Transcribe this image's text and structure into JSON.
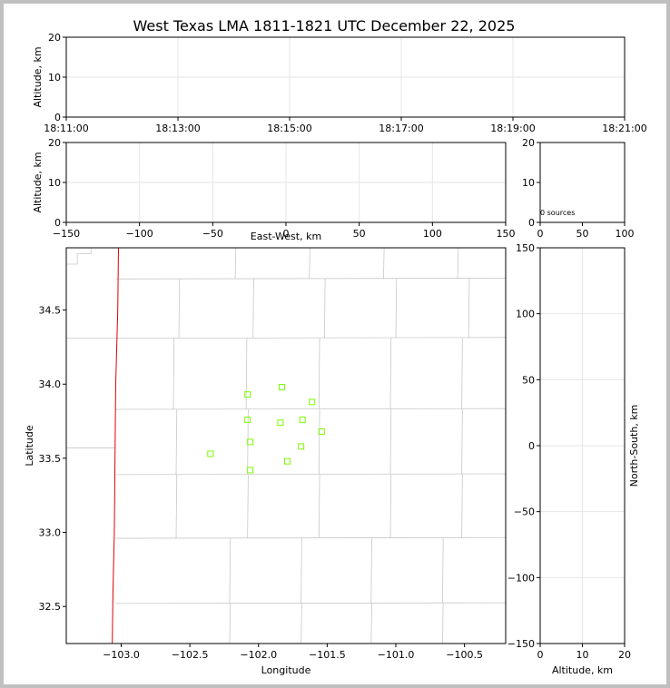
{
  "title": "West Texas LMA 1811-1821 UTC December 22, 2025",
  "colors": {
    "frame": "#c0c0c0",
    "state_line": "#e00000",
    "county_line": "#c8c8c8",
    "grid": "#e6e6e6",
    "source_marker": "#7cfc00"
  },
  "chart_data": [
    {
      "name": "altitude-vs-time",
      "type": "scatter",
      "ylabel": "Altitude, km",
      "xticks": [
        "18:11:00",
        "18:13:00",
        "18:15:00",
        "18:17:00",
        "18:19:00",
        "18:21:00"
      ],
      "yticks": [
        "0",
        "10",
        "20"
      ],
      "xlim": [
        "18:11:00",
        "18:21:00"
      ],
      "ylim": [
        0,
        20
      ],
      "grid": true,
      "points": []
    },
    {
      "name": "altitude-vs-east-west",
      "type": "scatter",
      "xlabel": "East-West, km",
      "ylabel": "Altitude, km",
      "xticks": [
        "−150",
        "−100",
        "−50",
        "0",
        "50",
        "100",
        "150"
      ],
      "yticks": [
        "0",
        "10",
        "20"
      ],
      "xlim": [
        -150,
        150
      ],
      "ylim": [
        0,
        20
      ],
      "grid": true,
      "points": []
    },
    {
      "name": "altitude-histogram",
      "type": "bar",
      "xticks": [
        "0",
        "50",
        "100"
      ],
      "yticks": [
        "0",
        "10",
        "20"
      ],
      "xlim": [
        0,
        100
      ],
      "ylim": [
        0,
        20
      ],
      "annotation": "0 sources",
      "values": []
    },
    {
      "name": "plan-view",
      "type": "scatter",
      "xlabel": "Longitude",
      "ylabel": "Latitude",
      "xticks": [
        "−103.0",
        "−102.5",
        "−102.0",
        "−101.5",
        "−101.0",
        "−100.5"
      ],
      "yticks": [
        "32.5",
        "33.0",
        "33.5",
        "34.0",
        "34.5"
      ],
      "xlim": [
        -103.4,
        -100.2
      ],
      "ylim": [
        32.25,
        34.92
      ],
      "points": [
        {
          "x": -102.08,
          "y": 33.93
        },
        {
          "x": -101.83,
          "y": 33.98
        },
        {
          "x": -101.61,
          "y": 33.88
        },
        {
          "x": -102.08,
          "y": 33.76
        },
        {
          "x": -101.84,
          "y": 33.74
        },
        {
          "x": -101.68,
          "y": 33.76
        },
        {
          "x": -101.54,
          "y": 33.68
        },
        {
          "x": -102.06,
          "y": 33.61
        },
        {
          "x": -101.69,
          "y": 33.58
        },
        {
          "x": -102.35,
          "y": 33.53
        },
        {
          "x": -101.79,
          "y": 33.48
        },
        {
          "x": -102.06,
          "y": 33.42
        }
      ]
    },
    {
      "name": "north-south-vs-altitude",
      "type": "scatter",
      "xlabel": "Altitude, km",
      "ylabel": "North-South, km",
      "xticks": [
        "0",
        "10",
        "20"
      ],
      "yticks": [
        "−150",
        "−100",
        "−50",
        "0",
        "50",
        "100",
        "150"
      ],
      "xlim": [
        0,
        20
      ],
      "ylim": [
        -150,
        150
      ],
      "grid": true,
      "points": []
    }
  ]
}
